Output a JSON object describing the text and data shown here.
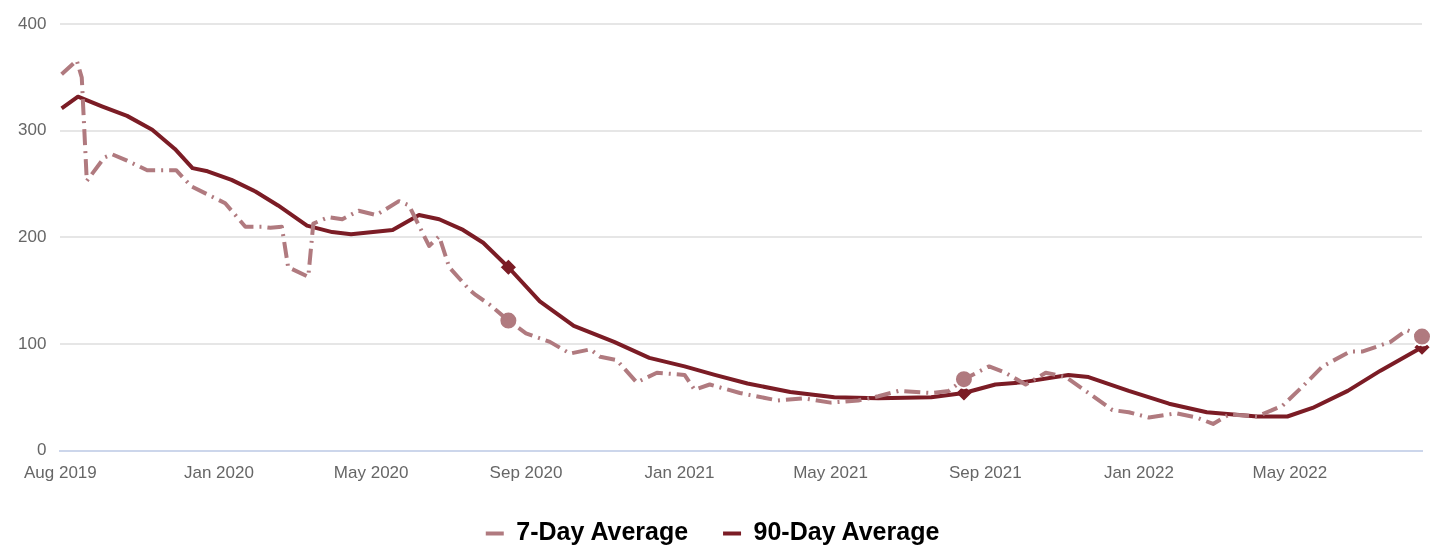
{
  "chart_data": {
    "type": "line",
    "xlim": [
      "2019-08-28",
      "2022-08-14"
    ],
    "xticks": [
      {
        "value": "2019-08-28",
        "label": "Aug 2019"
      },
      {
        "value": "2020-01-01",
        "label": "Jan 2020"
      },
      {
        "value": "2020-05-01",
        "label": "May 2020"
      },
      {
        "value": "2020-09-01",
        "label": "Sep 2020"
      },
      {
        "value": "2021-01-01",
        "label": "Jan 2021"
      },
      {
        "value": "2021-05-01",
        "label": "May 2021"
      },
      {
        "value": "2021-09-01",
        "label": "Sep 2021"
      },
      {
        "value": "2022-01-01",
        "label": "Jan 2022"
      },
      {
        "value": "2022-05-01",
        "label": "May 2022"
      }
    ],
    "ylim": [
      0,
      400
    ],
    "yticks": [
      0,
      100,
      200,
      300,
      400
    ],
    "grid": "y",
    "legend": "bottom",
    "series": [
      {
        "name": "7-Day Average",
        "color": "#b07a7f",
        "line_style": "dashed",
        "marker": "none",
        "x": [
          "2019-08-29",
          "2019-09-10",
          "2019-09-14",
          "2019-09-18",
          "2019-10-02",
          "2019-10-08",
          "2019-10-20",
          "2019-11-05",
          "2019-11-28",
          "2019-12-10",
          "2020-01-06",
          "2020-01-22",
          "2020-02-04",
          "2020-02-11",
          "2020-02-20",
          "2020-02-25",
          "2020-03-12",
          "2020-03-16",
          "2020-03-28",
          "2020-04-08",
          "2020-04-21",
          "2020-05-05",
          "2020-05-23",
          "2020-05-31",
          "2020-06-16",
          "2020-06-24",
          "2020-07-02",
          "2020-07-18",
          "2020-07-23",
          "2020-08-03",
          "2020-08-18",
          "2020-09-01",
          "2020-09-20",
          "2020-10-06",
          "2020-10-22",
          "2020-10-30",
          "2020-11-12",
          "2020-11-28",
          "2020-12-14",
          "2021-01-05",
          "2021-01-13",
          "2021-01-25",
          "2021-02-18",
          "2021-03-20",
          "2021-04-10",
          "2021-05-01",
          "2021-05-23",
          "2021-06-08",
          "2021-06-24",
          "2021-07-20",
          "2021-08-03",
          "2021-08-15",
          "2021-09-04",
          "2021-09-17",
          "2021-10-03",
          "2021-10-19",
          "2021-11-04",
          "2021-11-22",
          "2021-12-11",
          "2021-12-24",
          "2022-01-09",
          "2022-01-31",
          "2022-02-16",
          "2022-03-01",
          "2022-03-14",
          "2022-04-05",
          "2022-04-25",
          "2022-05-11",
          "2022-05-27",
          "2022-06-18",
          "2022-06-28",
          "2022-07-20",
          "2022-08-02",
          "2022-08-14"
        ],
        "values": [
          353,
          366,
          350,
          253,
          275,
          278,
          272,
          263,
          263,
          248,
          232,
          210,
          210,
          209,
          210,
          172,
          163,
          213,
          219,
          217,
          225,
          221,
          234,
          230,
          192,
          201,
          172,
          151,
          146,
          137,
          122,
          110,
          102,
          91,
          95,
          88,
          85,
          64,
          73,
          71,
          57,
          62,
          54,
          47,
          49,
          45,
          47,
          51,
          56,
          54,
          56,
          67,
          79,
          73,
          62,
          73,
          69,
          54,
          38,
          36,
          31,
          35,
          31,
          25,
          34,
          32,
          42,
          60,
          79,
          93,
          93,
          102,
          113,
          107
        ]
      },
      {
        "name": "90-Day Average",
        "color": "#7b1c25",
        "line_style": "solid",
        "marker": "none",
        "x": [
          "2019-08-29",
          "2019-09-11",
          "2019-09-30",
          "2019-10-20",
          "2019-11-09",
          "2019-11-27",
          "2019-12-11",
          "2019-12-23",
          "2020-01-11",
          "2020-01-30",
          "2020-02-17",
          "2020-03-11",
          "2020-03-31",
          "2020-04-15",
          "2020-05-18",
          "2020-06-08",
          "2020-06-24",
          "2020-07-13",
          "2020-07-29",
          "2020-08-18",
          "2020-09-12",
          "2020-10-09",
          "2020-11-10",
          "2020-12-08",
          "2021-01-05",
          "2021-01-29",
          "2021-02-24",
          "2021-03-30",
          "2021-05-04",
          "2021-06-08",
          "2021-07-20",
          "2021-08-15",
          "2021-09-09",
          "2021-09-30",
          "2021-11-06",
          "2021-11-22",
          "2021-12-24",
          "2022-01-25",
          "2022-02-24",
          "2022-04-05",
          "2022-04-29",
          "2022-05-19",
          "2022-06-16",
          "2022-07-12",
          "2022-08-14"
        ],
        "values": [
          321,
          332,
          323,
          314,
          301,
          283,
          265,
          262,
          254,
          243,
          230,
          211,
          205,
          203,
          207,
          221,
          217,
          207,
          195,
          172,
          140,
          117,
          102,
          87,
          79,
          71,
          63,
          55,
          50,
          49,
          50,
          54,
          62,
          64,
          71,
          69,
          56,
          44,
          36,
          32,
          32,
          40,
          56,
          75,
          97
        ]
      },
      {
        "type": "scatter",
        "color": "#b07a7f",
        "marker": "circle",
        "x": [
          "2020-08-18",
          "2021-08-15",
          "2022-08-14"
        ],
        "values": [
          122,
          67,
          107
        ]
      },
      {
        "type": "scatter",
        "color": "#7b1c25",
        "marker": "diamond",
        "x": [
          "2020-08-18",
          "2021-08-15",
          "2022-08-14"
        ],
        "values": [
          172,
          54,
          97
        ]
      }
    ]
  }
}
